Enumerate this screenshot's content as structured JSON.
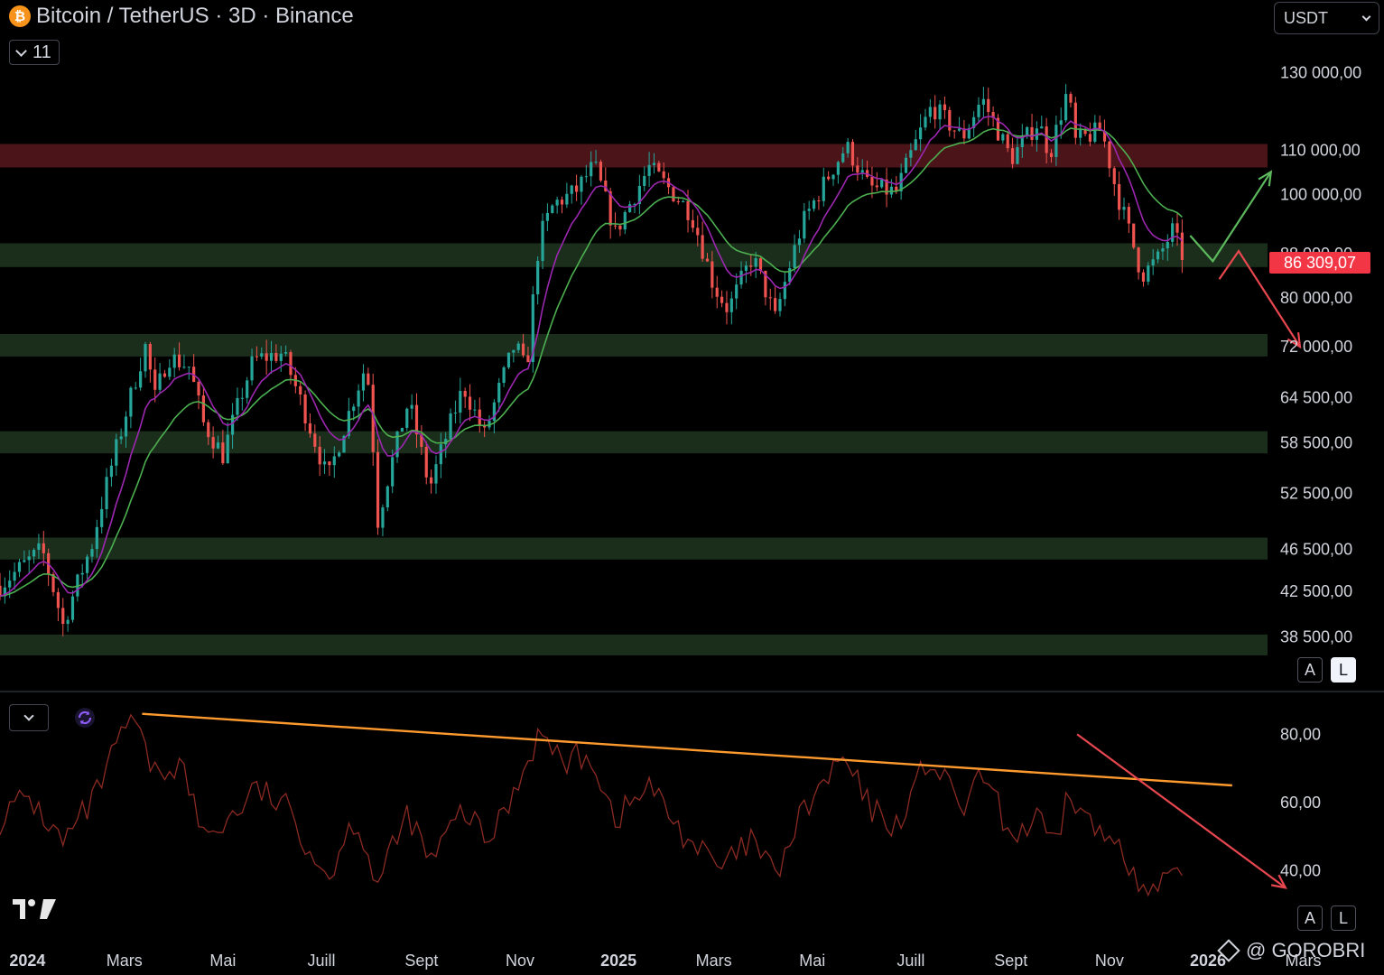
{
  "header": {
    "title": "Bitcoin / TetherUS · 3D · Binance",
    "coin_symbol": "₿",
    "indicator_count": "11"
  },
  "currency_select": {
    "value": "USDT"
  },
  "scale_buttons": {
    "auto": "A",
    "log": "L"
  },
  "watermark": "@ GOROBRI",
  "colors": {
    "up": "#26a69a",
    "down": "#ef5350",
    "ema_fast": "#9c27b0",
    "ema_slow": "#4caf50",
    "support_zone": "#1b2e1b",
    "resistance_zone": "#4a1418",
    "rsi_line": "#8b2a22",
    "rsi_trend": "#ff9a2e",
    "arrow_up": "#5cb85c",
    "arrow_down": "#e8474f",
    "price_tag": "#f23645"
  },
  "chart_data": [
    {
      "type": "candlestick",
      "title": "Bitcoin / TetherUS · 3D · Binance",
      "scale": "log",
      "ylim": [
        36000,
        138000
      ],
      "xlim": [
        "2023-12-15",
        "2026-04-20"
      ],
      "x_ticks": [
        {
          "date": "2024-01-01",
          "label": "2024",
          "bold": true
        },
        {
          "date": "2024-03-01",
          "label": "Mars"
        },
        {
          "date": "2024-05-01",
          "label": "Mai"
        },
        {
          "date": "2024-07-01",
          "label": "Juill"
        },
        {
          "date": "2024-09-01",
          "label": "Sept"
        },
        {
          "date": "2024-11-01",
          "label": "Nov"
        },
        {
          "date": "2025-01-01",
          "label": "2025",
          "bold": true
        },
        {
          "date": "2025-03-01",
          "label": "Mars"
        },
        {
          "date": "2025-05-01",
          "label": "Mai"
        },
        {
          "date": "2025-07-01",
          "label": "Juill"
        },
        {
          "date": "2025-09-01",
          "label": "Sept"
        },
        {
          "date": "2025-11-01",
          "label": "Nov"
        },
        {
          "date": "2026-01-01",
          "label": "2026",
          "bold": true
        },
        {
          "date": "2026-03-01",
          "label": "Mars"
        }
      ],
      "y_ticks": [
        {
          "value": 130000,
          "label": "130 000,00"
        },
        {
          "value": 110000,
          "label": "110 000,00"
        },
        {
          "value": 100000,
          "label": "100 000,00"
        },
        {
          "value": 88000,
          "label": "88 000,00"
        },
        {
          "value": 80000,
          "label": "80 000,00"
        },
        {
          "value": 72000,
          "label": "72 000,00"
        },
        {
          "value": 64500,
          "label": "64 500,00"
        },
        {
          "value": 58500,
          "label": "58 500,00"
        },
        {
          "value": 52500,
          "label": "52 500,00"
        },
        {
          "value": 46500,
          "label": "46 500,00"
        },
        {
          "value": 42500,
          "label": "42 500,00"
        },
        {
          "value": 38500,
          "label": "38 500,00"
        }
      ],
      "last_price": {
        "value": 86309.07,
        "label": "86 309,07"
      },
      "zones": [
        {
          "kind": "resistance",
          "low": 106000,
          "high": 111500
        },
        {
          "kind": "support",
          "low": 85500,
          "high": 90000
        },
        {
          "kind": "support",
          "low": 70500,
          "high": 74000
        },
        {
          "kind": "support",
          "low": 57200,
          "high": 60000
        },
        {
          "kind": "support",
          "low": 45500,
          "high": 47700
        },
        {
          "kind": "support",
          "low": 37000,
          "high": 38700
        }
      ],
      "price_path": [
        [
          "2023-12-15",
          43000
        ],
        [
          "2024-01-10",
          46500
        ],
        [
          "2024-01-23",
          39500
        ],
        [
          "2024-02-10",
          47000
        ],
        [
          "2024-02-28",
          60000
        ],
        [
          "2024-03-14",
          72000
        ],
        [
          "2024-03-20",
          64500
        ],
        [
          "2024-03-28",
          70500
        ],
        [
          "2024-04-10",
          69000
        ],
        [
          "2024-04-19",
          61000
        ],
        [
          "2024-05-01",
          57000
        ],
        [
          "2024-05-20",
          70000
        ],
        [
          "2024-06-07",
          71000
        ],
        [
          "2024-06-24",
          60500
        ],
        [
          "2024-07-05",
          54000
        ],
        [
          "2024-07-29",
          69500
        ],
        [
          "2024-08-05",
          49500
        ],
        [
          "2024-08-24",
          64000
        ],
        [
          "2024-09-06",
          53000
        ],
        [
          "2024-09-27",
          66000
        ],
        [
          "2024-10-10",
          59500
        ],
        [
          "2024-10-29",
          72500
        ],
        [
          "2024-11-05",
          68000
        ],
        [
          "2024-11-13",
          91000
        ],
        [
          "2024-11-22",
          98000
        ],
        [
          "2024-12-05",
          100500
        ],
        [
          "2024-12-17",
          106500
        ],
        [
          "2024-12-30",
          92000
        ],
        [
          "2025-01-20",
          106000
        ],
        [
          "2025-02-15",
          96000
        ],
        [
          "2025-03-01",
          82000
        ],
        [
          "2025-03-10",
          78000
        ],
        [
          "2025-03-25",
          87500
        ],
        [
          "2025-04-08",
          76500
        ],
        [
          "2025-04-25",
          94000
        ],
        [
          "2025-05-22",
          111000
        ],
        [
          "2025-06-05",
          101500
        ],
        [
          "2025-06-22",
          100500
        ],
        [
          "2025-07-14",
          121000
        ],
        [
          "2025-08-02",
          113000
        ],
        [
          "2025-08-14",
          123000
        ],
        [
          "2025-09-01",
          108000
        ],
        [
          "2025-09-18",
          117000
        ],
        [
          "2025-09-25",
          109000
        ],
        [
          "2025-10-06",
          125000
        ],
        [
          "2025-10-11",
          112000
        ],
        [
          "2025-10-27",
          115000
        ],
        [
          "2025-11-05",
          101000
        ],
        [
          "2025-11-21",
          84000
        ],
        [
          "2025-12-01",
          87000
        ],
        [
          "2025-12-10",
          92500
        ],
        [
          "2025-12-18",
          86309
        ]
      ],
      "annotations": [
        {
          "kind": "arrow",
          "color": "arrow_up",
          "points": [
            [
              "2025-12-21",
              91500
            ],
            [
              "2026-01-04",
              86600
            ],
            [
              "2026-02-09",
              105000
            ]
          ]
        },
        {
          "kind": "arrow",
          "color": "arrow_down",
          "points": [
            [
              "2026-01-08",
              83300
            ],
            [
              "2026-01-20",
              88500
            ],
            [
              "2026-02-27",
              72000
            ]
          ]
        }
      ]
    },
    {
      "type": "line",
      "series": [
        {
          "values_ref": "rsi_path"
        }
      ],
      "ylim": [
        20,
        92
      ],
      "y_ticks": [
        {
          "value": 80,
          "label": "80,00"
        },
        {
          "value": 60,
          "label": "60,00"
        },
        {
          "value": 40,
          "label": "40,00"
        }
      ],
      "rsi_path": [
        [
          "2023-12-15",
          55
        ],
        [
          "2024-01-01",
          62
        ],
        [
          "2024-01-23",
          48
        ],
        [
          "2024-02-10",
          60
        ],
        [
          "2024-03-05",
          85
        ],
        [
          "2024-03-20",
          68
        ],
        [
          "2024-04-05",
          72
        ],
        [
          "2024-04-19",
          50
        ],
        [
          "2024-05-05",
          55
        ],
        [
          "2024-05-22",
          64
        ],
        [
          "2024-06-10",
          58
        ],
        [
          "2024-07-05",
          38
        ],
        [
          "2024-07-22",
          56
        ],
        [
          "2024-08-05",
          36
        ],
        [
          "2024-08-24",
          57
        ],
        [
          "2024-09-06",
          42
        ],
        [
          "2024-09-27",
          58
        ],
        [
          "2024-10-12",
          48
        ],
        [
          "2024-10-29",
          64
        ],
        [
          "2024-11-12",
          80
        ],
        [
          "2024-11-28",
          72
        ],
        [
          "2024-12-15",
          74
        ],
        [
          "2024-12-30",
          55
        ],
        [
          "2025-01-20",
          65
        ],
        [
          "2025-02-08",
          52
        ],
        [
          "2025-03-05",
          40
        ],
        [
          "2025-03-25",
          49
        ],
        [
          "2025-04-08",
          38
        ],
        [
          "2025-04-25",
          57
        ],
        [
          "2025-05-20",
          73
        ],
        [
          "2025-06-06",
          58
        ],
        [
          "2025-06-22",
          53
        ],
        [
          "2025-07-12",
          73
        ],
        [
          "2025-08-02",
          58
        ],
        [
          "2025-08-15",
          68
        ],
        [
          "2025-09-01",
          50
        ],
        [
          "2025-09-20",
          55
        ],
        [
          "2025-09-28",
          44
        ],
        [
          "2025-10-06",
          63
        ],
        [
          "2025-10-28",
          49
        ],
        [
          "2025-11-08",
          50
        ],
        [
          "2025-11-21",
          32
        ],
        [
          "2025-12-02",
          35
        ],
        [
          "2025-12-10",
          38
        ],
        [
          "2025-12-18",
          34
        ]
      ],
      "annotations": [
        {
          "kind": "trendline",
          "color": "rsi_trend",
          "points": [
            [
              "2024-03-12",
              86
            ],
            [
              "2026-01-16",
              65
            ]
          ]
        },
        {
          "kind": "arrow",
          "color": "arrow_down",
          "points": [
            [
              "2025-10-12",
              80
            ],
            [
              "2026-02-18",
              35
            ]
          ]
        }
      ]
    }
  ]
}
